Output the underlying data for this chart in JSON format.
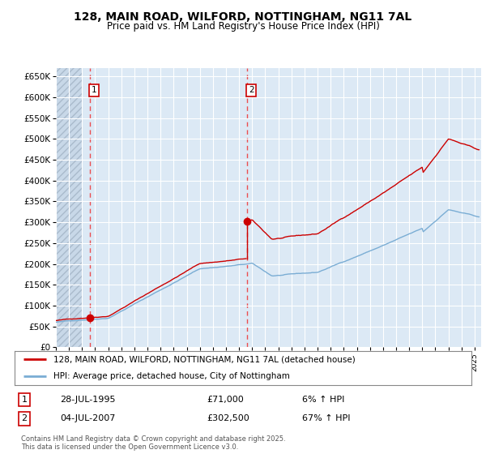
{
  "title1": "128, MAIN ROAD, WILFORD, NOTTINGHAM, NG11 7AL",
  "title2": "Price paid vs. HM Land Registry's House Price Index (HPI)",
  "background_color": "#ffffff",
  "plot_bg_color": "#dce9f5",
  "grid_color": "#ffffff",
  "red_line_color": "#cc0000",
  "blue_line_color": "#7aadd4",
  "dashed_line_color": "#ee3333",
  "sale1_year_x": 1995.57,
  "sale1_price": 71000,
  "sale2_year_x": 2007.58,
  "sale2_price": 302500,
  "legend_line1": "128, MAIN ROAD, WILFORD, NOTTINGHAM, NG11 7AL (detached house)",
  "legend_line2": "HPI: Average price, detached house, City of Nottingham",
  "sale1_label_year": "28-JUL-1995",
  "sale1_label_price": "£71,000",
  "sale1_label_hpi": "6% ↑ HPI",
  "sale2_label_year": "04-JUL-2007",
  "sale2_label_price": "£302,500",
  "sale2_label_hpi": "67% ↑ HPI",
  "footer": "Contains HM Land Registry data © Crown copyright and database right 2025.\nThis data is licensed under the Open Government Licence v3.0.",
  "ylim": [
    0,
    670000
  ],
  "yticks": [
    0,
    50000,
    100000,
    150000,
    200000,
    250000,
    300000,
    350000,
    400000,
    450000,
    500000,
    550000,
    600000,
    650000
  ],
  "xlim_start": 1993.0,
  "xlim_end": 2025.5
}
